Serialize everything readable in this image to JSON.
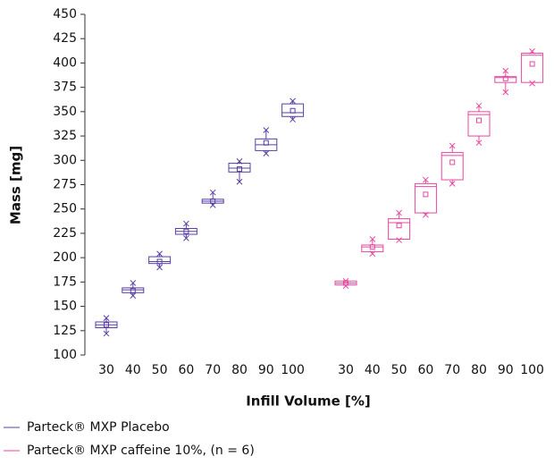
{
  "chart_data": {
    "type": "box",
    "xlabel": "Infill Volume [%]",
    "ylabel": "Mass [mg]",
    "categories": [
      "30",
      "40",
      "50",
      "60",
      "70",
      "80",
      "90",
      "100"
    ],
    "ylim": [
      100,
      450
    ],
    "yticks": [
      100,
      125,
      150,
      175,
      200,
      225,
      250,
      275,
      300,
      325,
      350,
      375,
      400,
      425,
      450
    ],
    "series": [
      {
        "name": "Parteck® MXP Placebo",
        "color": "#5a3fa6",
        "min": [
          122,
          161,
          190,
          220,
          254,
          278,
          307,
          342
        ],
        "q1": [
          128,
          164,
          194,
          224,
          256,
          288,
          310,
          345
        ],
        "median": [
          131,
          167,
          196,
          227,
          258,
          292,
          316,
          349
        ],
        "q3": [
          134,
          169,
          201,
          230,
          260,
          297,
          322,
          358
        ],
        "max": [
          138,
          174,
          204,
          235,
          267,
          299,
          331,
          361
        ],
        "mean": [
          131,
          166,
          196,
          227,
          258,
          291,
          318,
          351
        ]
      },
      {
        "name": "Parteck® MXP caffeine 10%, (n = 6)",
        "color": "#e8489f",
        "min": [
          171,
          204,
          218,
          244,
          276,
          318,
          370,
          379
        ],
        "q1": [
          172,
          206,
          219,
          246,
          280,
          325,
          380,
          380
        ],
        "median": [
          174,
          211,
          236,
          273,
          305,
          347,
          385,
          408
        ],
        "q3": [
          176,
          213,
          240,
          276,
          308,
          350,
          386,
          410
        ],
        "max": [
          176,
          219,
          246,
          280,
          315,
          356,
          392,
          412
        ],
        "mean": [
          174,
          211,
          233,
          265,
          298,
          341,
          384,
          399
        ]
      }
    ]
  }
}
